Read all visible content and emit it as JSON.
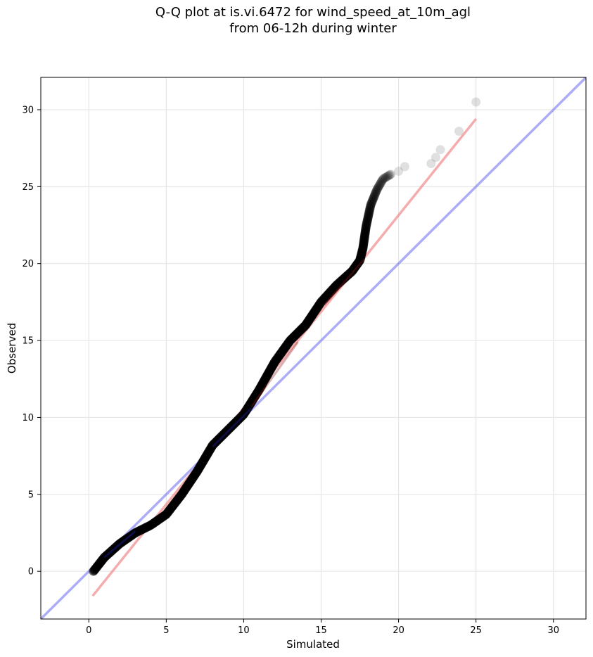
{
  "title_line1": "Q-Q plot at is.vi.6472 for wind_speed_at_10m_agl",
  "title_line2": "from 06-12h during winter",
  "chart_data": {
    "type": "scatter",
    "title": "Q-Q plot at is.vi.6472 for wind_speed_at_10m_agl\nfrom 06-12h during winter",
    "xlabel": "Simulated",
    "ylabel": "Observed",
    "xlim": [
      -3.1,
      32.1
    ],
    "ylim": [
      -3.1,
      32.1
    ],
    "xticks": [
      0,
      5,
      10,
      15,
      20,
      25,
      30
    ],
    "yticks": [
      0,
      5,
      10,
      15,
      20,
      25,
      30
    ],
    "grid": true,
    "colors": {
      "points": "#000000",
      "fit_line": "#f08080",
      "identity_line": "#6a6af0",
      "overlap_low": "#1a1a8c",
      "overlap_high": "#8c1a1a"
    },
    "points_curve": [
      [
        0.3,
        0.0
      ],
      [
        1.0,
        0.9
      ],
      [
        2.0,
        1.8
      ],
      [
        3.0,
        2.5
      ],
      [
        4.0,
        3.0
      ],
      [
        5.0,
        3.7
      ],
      [
        6.0,
        5.0
      ],
      [
        7.0,
        6.5
      ],
      [
        8.0,
        8.2
      ],
      [
        9.0,
        9.2
      ],
      [
        10.0,
        10.2
      ],
      [
        11.0,
        11.8
      ],
      [
        12.0,
        13.6
      ],
      [
        13.0,
        15.0
      ],
      [
        14.0,
        16.0
      ],
      [
        15.0,
        17.5
      ],
      [
        16.0,
        18.6
      ],
      [
        17.0,
        19.5
      ],
      [
        17.5,
        20.2
      ],
      [
        17.7,
        21.0
      ],
      [
        17.9,
        22.4
      ],
      [
        18.2,
        23.8
      ],
      [
        18.6,
        24.8
      ],
      [
        19.0,
        25.5
      ],
      [
        19.5,
        25.8
      ]
    ],
    "tail_points": [
      [
        20.0,
        26.0
      ],
      [
        20.4,
        26.3
      ],
      [
        22.1,
        26.5
      ],
      [
        22.4,
        26.9
      ],
      [
        22.7,
        27.4
      ],
      [
        23.9,
        28.6
      ],
      [
        25.0,
        30.5
      ]
    ],
    "fit_line": {
      "x": [
        0.25,
        25.0
      ],
      "y": [
        -1.6,
        29.4
      ]
    },
    "identity_line": {
      "x": [
        -3.1,
        32.1
      ],
      "y": [
        -3.1,
        32.1
      ]
    }
  }
}
